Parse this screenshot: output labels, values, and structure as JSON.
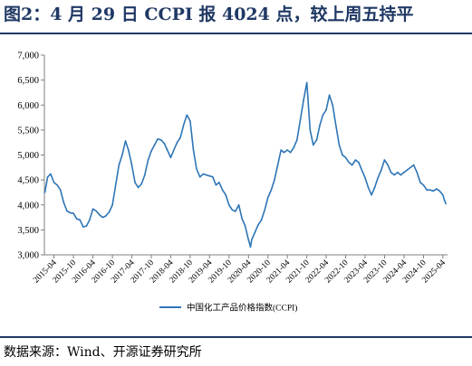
{
  "title": "图2：4 月 29 日 CCPI 报 4024 点，较上周五持平",
  "source": "数据来源：Wind、开源证券研究所",
  "colors": {
    "title": "#1f3864",
    "series": "#2e75b6",
    "axis": "#7f7f7f"
  },
  "chart_data": {
    "type": "line",
    "title": "",
    "xlabel": "",
    "ylabel": "",
    "ylim": [
      3000,
      7000
    ],
    "y_ticks": [
      3000,
      3500,
      4000,
      4500,
      5000,
      5500,
      6000,
      6500,
      7000
    ],
    "y_tick_labels": [
      "3,000",
      "3,500",
      "4,000",
      "4,500",
      "5,000",
      "5,500",
      "6,000",
      "6,500",
      "7,000"
    ],
    "x_ticks": [
      "2015-04",
      "2015-10",
      "2016-04",
      "2016-10",
      "2017-04",
      "2017-10",
      "2018-04",
      "2018-10",
      "2019-04",
      "2019-10",
      "2020-04",
      "2020-10",
      "2021-04",
      "2021-10",
      "2022-04",
      "2022-10",
      "2023-04",
      "2023-10",
      "2024-04",
      "2024-10",
      "2025-04"
    ],
    "legend": "bottom-center",
    "grid": false,
    "series": [
      {
        "name": "中国化工产品价格指数(CCPI)",
        "color": "#2e75b6",
        "points": [
          [
            "2015-01-05",
            4250
          ],
          [
            "2015-02-01",
            4560
          ],
          [
            "2015-03-01",
            4620
          ],
          [
            "2015-04-01",
            4450
          ],
          [
            "2015-05-01",
            4400
          ],
          [
            "2015-06-01",
            4300
          ],
          [
            "2015-07-01",
            4050
          ],
          [
            "2015-08-01",
            3880
          ],
          [
            "2015-09-01",
            3840
          ],
          [
            "2015-10-01",
            3830
          ],
          [
            "2015-11-01",
            3720
          ],
          [
            "2015-12-01",
            3700
          ],
          [
            "2016-01-01",
            3560
          ],
          [
            "2016-02-01",
            3580
          ],
          [
            "2016-03-01",
            3700
          ],
          [
            "2016-04-01",
            3920
          ],
          [
            "2016-05-01",
            3880
          ],
          [
            "2016-06-01",
            3800
          ],
          [
            "2016-07-01",
            3750
          ],
          [
            "2016-08-01",
            3780
          ],
          [
            "2016-09-01",
            3860
          ],
          [
            "2016-10-01",
            4000
          ],
          [
            "2016-11-01",
            4400
          ],
          [
            "2016-12-01",
            4800
          ],
          [
            "2017-01-01",
            5000
          ],
          [
            "2017-02-01",
            5280
          ],
          [
            "2017-03-01",
            5100
          ],
          [
            "2017-04-01",
            4800
          ],
          [
            "2017-05-01",
            4450
          ],
          [
            "2017-06-01",
            4350
          ],
          [
            "2017-07-01",
            4420
          ],
          [
            "2017-08-01",
            4600
          ],
          [
            "2017-09-01",
            4900
          ],
          [
            "2017-10-01",
            5080
          ],
          [
            "2017-11-01",
            5200
          ],
          [
            "2017-12-01",
            5320
          ],
          [
            "2018-01-01",
            5300
          ],
          [
            "2018-02-01",
            5230
          ],
          [
            "2018-03-01",
            5100
          ],
          [
            "2018-04-01",
            4950
          ],
          [
            "2018-05-01",
            5100
          ],
          [
            "2018-06-01",
            5250
          ],
          [
            "2018-07-01",
            5350
          ],
          [
            "2018-08-01",
            5600
          ],
          [
            "2018-09-01",
            5800
          ],
          [
            "2018-10-01",
            5680
          ],
          [
            "2018-11-01",
            5100
          ],
          [
            "2018-12-01",
            4720
          ],
          [
            "2019-01-01",
            4560
          ],
          [
            "2019-02-01",
            4620
          ],
          [
            "2019-03-01",
            4600
          ],
          [
            "2019-04-01",
            4580
          ],
          [
            "2019-05-01",
            4560
          ],
          [
            "2019-06-01",
            4400
          ],
          [
            "2019-07-01",
            4450
          ],
          [
            "2019-08-01",
            4300
          ],
          [
            "2019-09-01",
            4200
          ],
          [
            "2019-10-01",
            4000
          ],
          [
            "2019-11-01",
            3900
          ],
          [
            "2019-12-01",
            3870
          ],
          [
            "2020-01-01",
            4000
          ],
          [
            "2020-02-01",
            3720
          ],
          [
            "2020-03-01",
            3580
          ],
          [
            "2020-04-01",
            3300
          ],
          [
            "2020-04-20",
            3160
          ],
          [
            "2020-05-01",
            3300
          ],
          [
            "2020-06-01",
            3450
          ],
          [
            "2020-07-01",
            3600
          ],
          [
            "2020-08-01",
            3700
          ],
          [
            "2020-09-01",
            3900
          ],
          [
            "2020-10-01",
            4150
          ],
          [
            "2020-11-01",
            4300
          ],
          [
            "2020-12-01",
            4500
          ],
          [
            "2021-01-01",
            4800
          ],
          [
            "2021-02-01",
            5100
          ],
          [
            "2021-03-01",
            5050
          ],
          [
            "2021-04-01",
            5100
          ],
          [
            "2021-05-01",
            5050
          ],
          [
            "2021-06-01",
            5150
          ],
          [
            "2021-07-01",
            5300
          ],
          [
            "2021-08-01",
            5700
          ],
          [
            "2021-09-01",
            6100
          ],
          [
            "2021-10-01",
            6450
          ],
          [
            "2021-11-01",
            5500
          ],
          [
            "2021-12-01",
            5200
          ],
          [
            "2022-01-01",
            5300
          ],
          [
            "2022-02-01",
            5600
          ],
          [
            "2022-03-01",
            5800
          ],
          [
            "2022-04-01",
            5900
          ],
          [
            "2022-05-01",
            6200
          ],
          [
            "2022-06-01",
            6000
          ],
          [
            "2022-07-01",
            5600
          ],
          [
            "2022-08-01",
            5200
          ],
          [
            "2022-09-01",
            5000
          ],
          [
            "2022-10-01",
            4950
          ],
          [
            "2022-11-01",
            4850
          ],
          [
            "2022-12-01",
            4800
          ],
          [
            "2023-01-01",
            4900
          ],
          [
            "2023-02-01",
            4850
          ],
          [
            "2023-03-01",
            4700
          ],
          [
            "2023-04-01",
            4550
          ],
          [
            "2023-05-01",
            4350
          ],
          [
            "2023-06-01",
            4200
          ],
          [
            "2023-07-01",
            4350
          ],
          [
            "2023-08-01",
            4550
          ],
          [
            "2023-09-01",
            4700
          ],
          [
            "2023-10-01",
            4900
          ],
          [
            "2023-11-01",
            4800
          ],
          [
            "2023-12-01",
            4650
          ],
          [
            "2024-01-01",
            4600
          ],
          [
            "2024-02-01",
            4650
          ],
          [
            "2024-03-01",
            4600
          ],
          [
            "2024-04-01",
            4650
          ],
          [
            "2024-05-01",
            4700
          ],
          [
            "2024-06-01",
            4750
          ],
          [
            "2024-07-01",
            4800
          ],
          [
            "2024-08-01",
            4650
          ],
          [
            "2024-09-01",
            4450
          ],
          [
            "2024-10-01",
            4400
          ],
          [
            "2024-11-01",
            4300
          ],
          [
            "2024-12-01",
            4300
          ],
          [
            "2025-01-01",
            4280
          ],
          [
            "2025-02-01",
            4320
          ],
          [
            "2025-03-01",
            4280
          ],
          [
            "2025-04-01",
            4200
          ],
          [
            "2025-04-15",
            4100
          ],
          [
            "2025-04-29",
            4024
          ]
        ]
      }
    ]
  }
}
